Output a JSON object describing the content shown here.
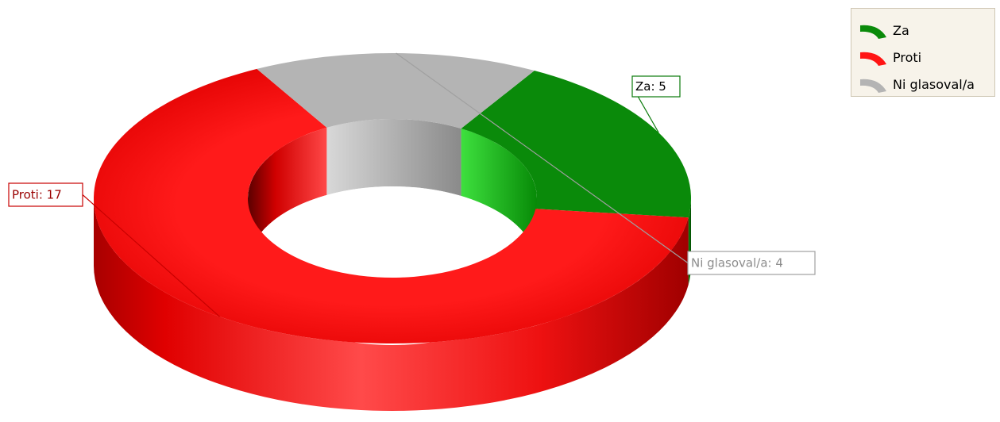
{
  "chart_data": {
    "type": "pie",
    "variant": "donut-3d",
    "title": "",
    "categories": [
      "Za",
      "Proti",
      "Ni glasoval/a"
    ],
    "values": [
      5,
      17,
      4
    ],
    "labels": [
      "Za: 5",
      "Proti: 17",
      "Ni glasoval/a: 4"
    ],
    "colors": [
      "#0a8a0a",
      "#ff1414",
      "#b4b4b4"
    ],
    "label_border_colors": [
      "#0a7a0a",
      "#c80000",
      "#a0a0a0"
    ],
    "label_text_colors": [
      "#000000",
      "#9a0000",
      "#8c8c8c"
    ],
    "legend": {
      "position": "top-right",
      "entries": [
        "Za",
        "Proti",
        "Ni glasoval/a"
      ]
    }
  }
}
